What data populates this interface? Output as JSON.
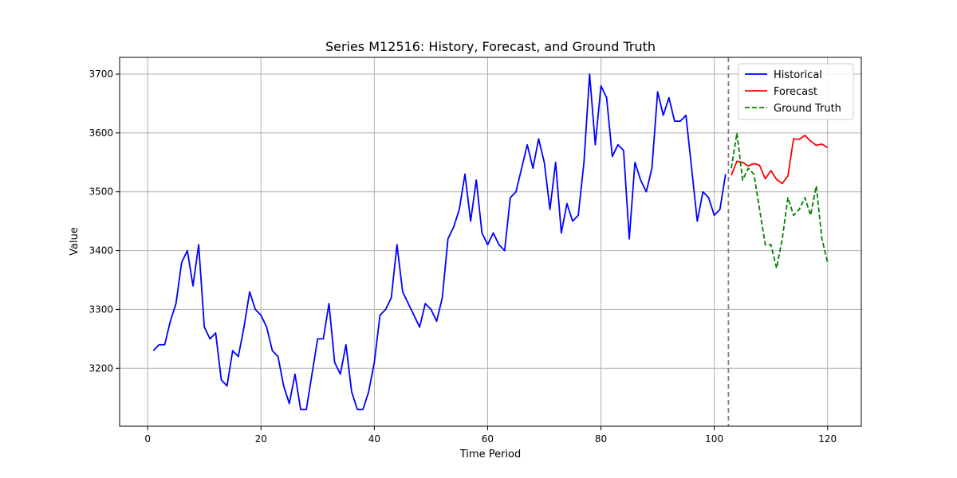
{
  "chart_data": {
    "type": "line",
    "title": "Series M12516: History, Forecast, and Ground Truth",
    "xlabel": "Time Period",
    "ylabel": "Value",
    "xlim": [
      -4.95,
      125.95
    ],
    "ylim": [
      3101.5,
      3728.5
    ],
    "xticks": [
      0,
      20,
      40,
      60,
      80,
      100,
      120
    ],
    "yticks": [
      3200,
      3300,
      3400,
      3500,
      3600,
      3700
    ],
    "grid": true,
    "legend_position": "top-right",
    "forecast_start_x": 102.5,
    "series": [
      {
        "name": "Historical",
        "color": "#0000ff",
        "dash": "solid",
        "x": [
          1,
          2,
          3,
          4,
          5,
          6,
          7,
          8,
          9,
          10,
          11,
          12,
          13,
          14,
          15,
          16,
          17,
          18,
          19,
          20,
          21,
          22,
          23,
          24,
          25,
          26,
          27,
          28,
          29,
          30,
          31,
          32,
          33,
          34,
          35,
          36,
          37,
          38,
          39,
          40,
          41,
          42,
          43,
          44,
          45,
          46,
          47,
          48,
          49,
          50,
          51,
          52,
          53,
          54,
          55,
          56,
          57,
          58,
          59,
          60,
          61,
          62,
          63,
          64,
          65,
          66,
          67,
          68,
          69,
          70,
          71,
          72,
          73,
          74,
          75,
          76,
          77,
          78,
          79,
          80,
          81,
          82,
          83,
          84,
          85,
          86,
          87,
          88,
          89,
          90,
          91,
          92,
          93,
          94,
          95,
          96,
          97,
          98,
          99,
          100,
          101,
          102
        ],
        "values": [
          3230,
          3240,
          3240,
          3280,
          3310,
          3380,
          3400,
          3340,
          3410,
          3270,
          3250,
          3260,
          3180,
          3170,
          3230,
          3220,
          3270,
          3330,
          3300,
          3290,
          3270,
          3230,
          3220,
          3170,
          3140,
          3190,
          3130,
          3130,
          3190,
          3250,
          3250,
          3310,
          3210,
          3190,
          3240,
          3160,
          3130,
          3130,
          3160,
          3210,
          3290,
          3300,
          3320,
          3410,
          3330,
          3310,
          3290,
          3270,
          3310,
          3300,
          3280,
          3320,
          3420,
          3440,
          3470,
          3530,
          3450,
          3520,
          3430,
          3410,
          3430,
          3410,
          3400,
          3490,
          3500,
          3540,
          3580,
          3540,
          3590,
          3550,
          3470,
          3550,
          3430,
          3480,
          3450,
          3460,
          3550,
          3700,
          3580,
          3680,
          3660,
          3560,
          3580,
          3570,
          3420,
          3550,
          3520,
          3500,
          3540,
          3670,
          3630,
          3660,
          3620,
          3620,
          3630,
          3540,
          3450,
          3500,
          3490,
          3460,
          3470,
          3530
        ]
      },
      {
        "name": "Forecast",
        "color": "#ff0000",
        "dash": "solid",
        "x": [
          103,
          104,
          105,
          106,
          107,
          108,
          109,
          110,
          111,
          112,
          113,
          114,
          115,
          116,
          117,
          118,
          119,
          120
        ],
        "values": [
          3528,
          3552,
          3550,
          3544,
          3548,
          3545,
          3522,
          3536,
          3521,
          3514,
          3527,
          3590,
          3589,
          3596,
          3586,
          3579,
          3581,
          3575
        ]
      },
      {
        "name": "Ground Truth",
        "color": "#008000",
        "dash": "dashed",
        "x": [
          103,
          104,
          105,
          106,
          107,
          108,
          109,
          110,
          111,
          112,
          113,
          114,
          115,
          116,
          117,
          118,
          119,
          120
        ],
        "values": [
          3540,
          3600,
          3520,
          3540,
          3530,
          3470,
          3410,
          3410,
          3370,
          3420,
          3490,
          3460,
          3470,
          3490,
          3460,
          3510,
          3420,
          3380
        ]
      }
    ]
  }
}
